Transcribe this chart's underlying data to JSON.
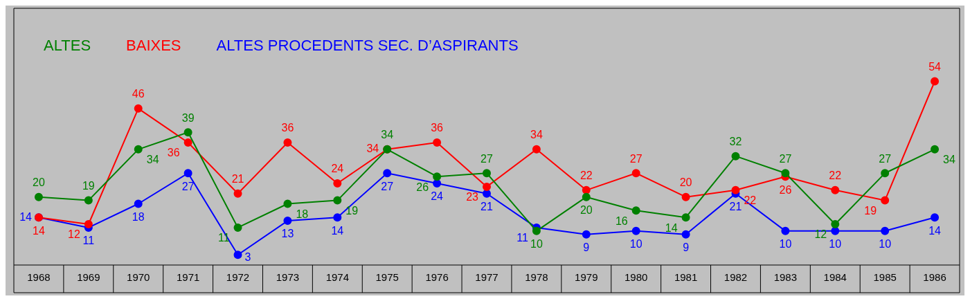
{
  "chart_data": {
    "type": "line",
    "categories": [
      "1968",
      "1969",
      "1970",
      "1971",
      "1972",
      "1973",
      "1974",
      "1975",
      "1976",
      "1977",
      "1978",
      "1979",
      "1980",
      "1981",
      "1982",
      "1983",
      "1984",
      "1985",
      "1986"
    ],
    "series": [
      {
        "name": "ALTES",
        "color": "#008000",
        "values": [
          20,
          19,
          34,
          39,
          11,
          18,
          19,
          34,
          26,
          27,
          10,
          20,
          16,
          14,
          32,
          27,
          12,
          27,
          34
        ]
      },
      {
        "name": "BAIXES",
        "color": "#ff0000",
        "values": [
          14,
          12,
          46,
          36,
          21,
          36,
          24,
          34,
          36,
          23,
          34,
          22,
          27,
          20,
          22,
          26,
          22,
          19,
          54
        ]
      },
      {
        "name": "ALTES PROCEDENTS SEC. D’ASPIRANTS",
        "color": "#0000ff",
        "values": [
          14,
          11,
          18,
          27,
          3,
          13,
          14,
          27,
          24,
          21,
          11,
          9,
          10,
          9,
          21,
          10,
          10,
          10,
          14
        ]
      }
    ],
    "tick_labels": "x",
    "grid": false,
    "legend": "top left",
    "marker": "circle",
    "line_style": "solid",
    "data_labels": true
  }
}
